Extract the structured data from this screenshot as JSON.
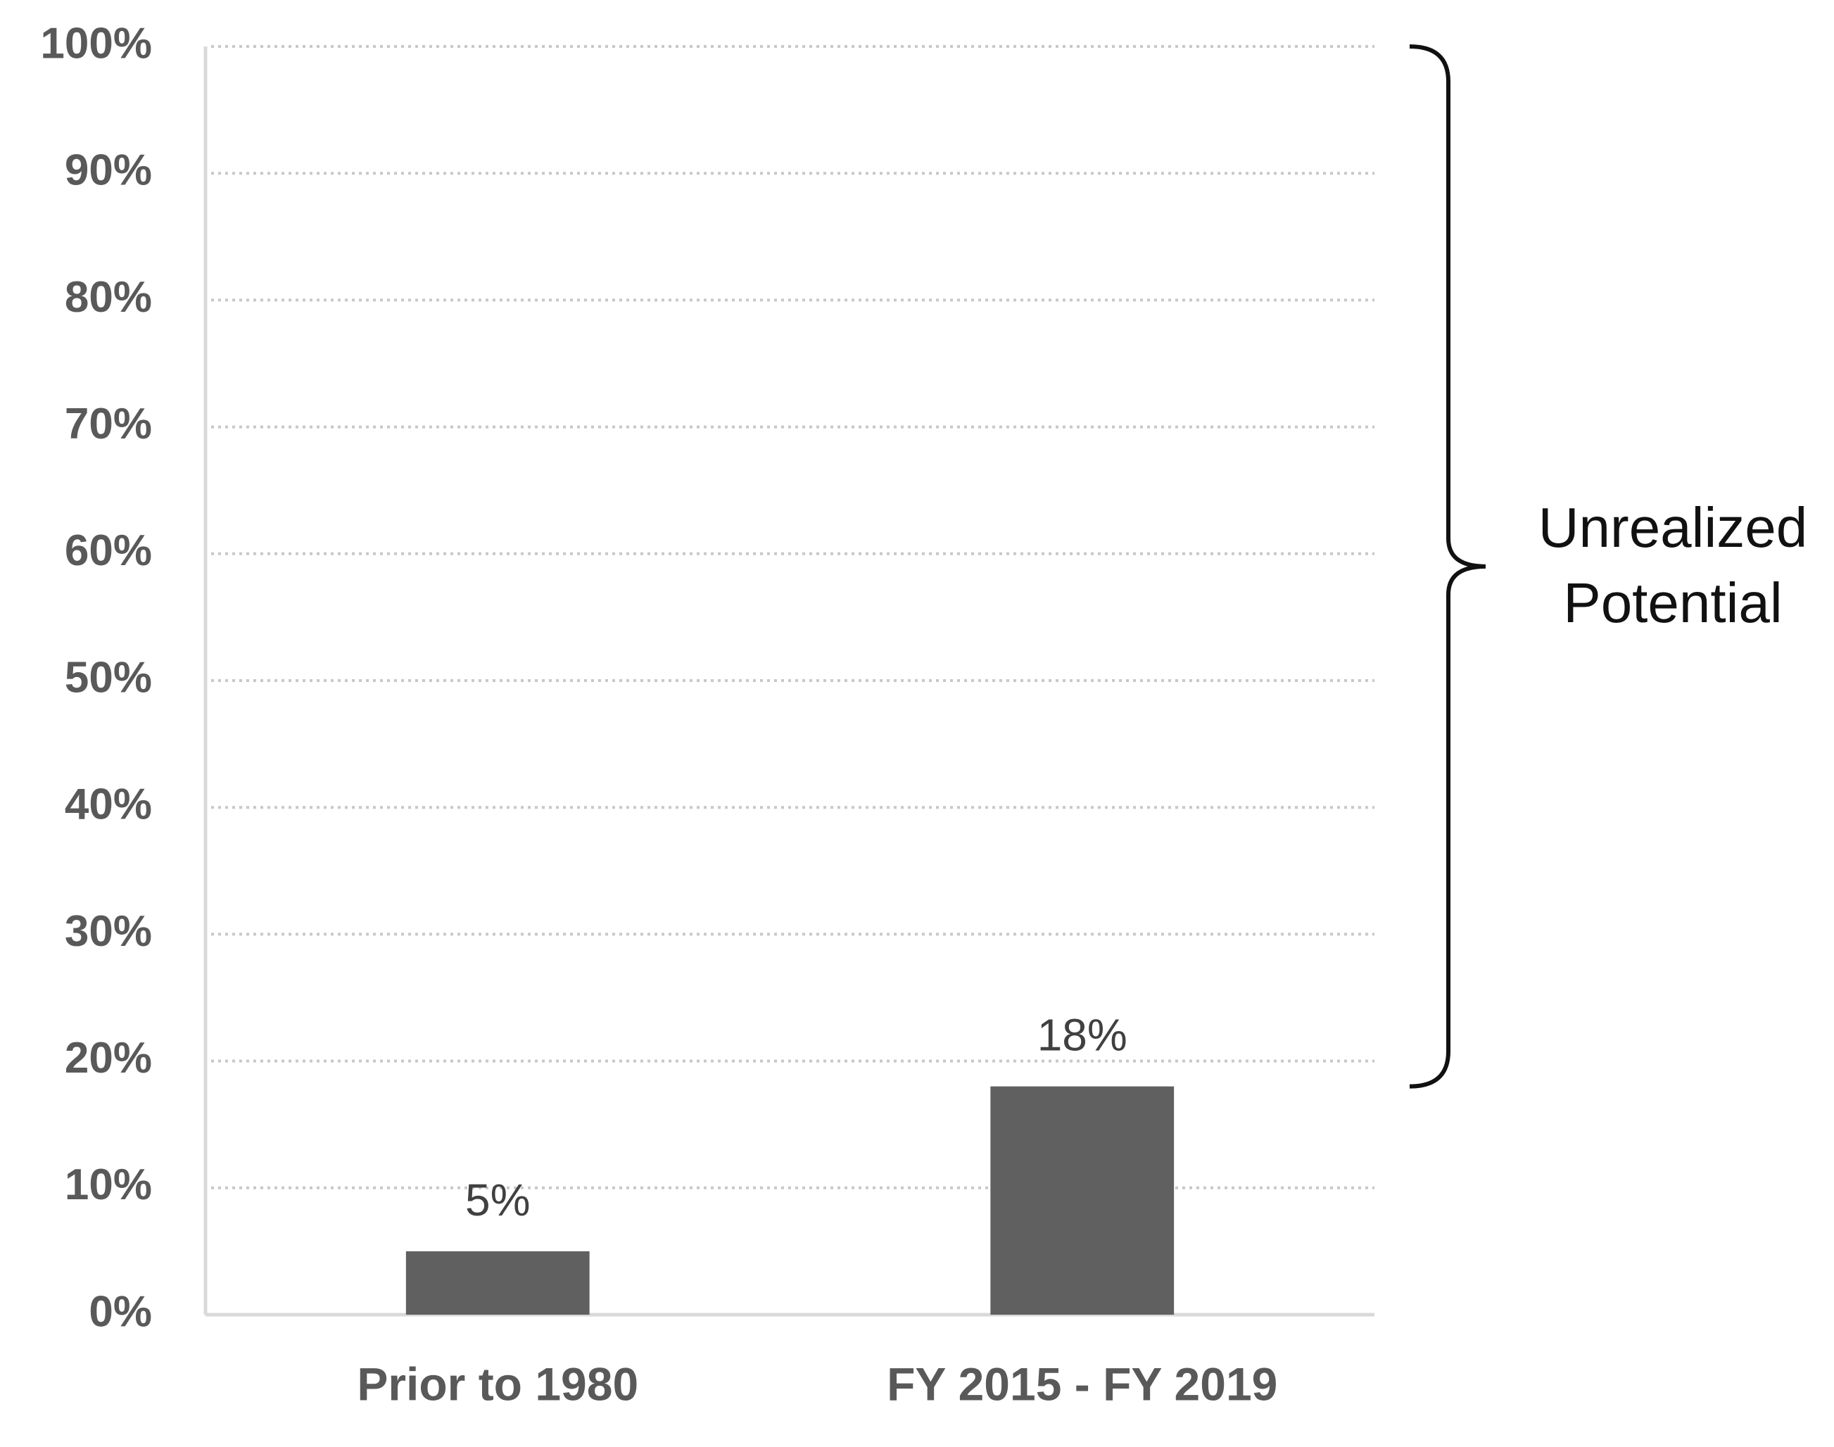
{
  "chart_data": {
    "type": "bar",
    "categories": [
      "Prior to 1980",
      "FY 2015 - FY 2019"
    ],
    "values": [
      5,
      18
    ],
    "value_labels": [
      "5%",
      "18%"
    ],
    "color": "#606060",
    "ylim": [
      0,
      100
    ],
    "yticks": [
      {
        "value": 0,
        "label": "0%"
      },
      {
        "value": 10,
        "label": "10%"
      },
      {
        "value": 20,
        "label": "20%"
      },
      {
        "value": 30,
        "label": "30%"
      },
      {
        "value": 40,
        "label": "40%"
      },
      {
        "value": 50,
        "label": "50%"
      },
      {
        "value": 60,
        "label": "60%"
      },
      {
        "value": 70,
        "label": "70%"
      },
      {
        "value": 80,
        "label": "80%"
      },
      {
        "value": 90,
        "label": "90%"
      },
      {
        "value": 100,
        "label": "100%"
      }
    ],
    "grid": true,
    "annotation": [
      "Unrealized",
      "Potential"
    ]
  }
}
